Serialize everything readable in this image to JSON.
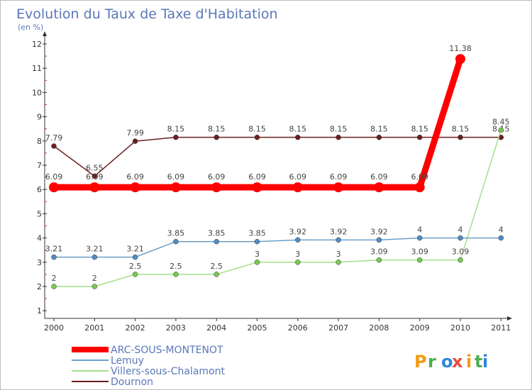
{
  "chart_data": {
    "type": "line",
    "title": "Evolution du Taux de Taxe d'Habitation",
    "subtitle": "(en %)",
    "x": [
      "2000",
      "2001",
      "2002",
      "2003",
      "2004",
      "2005",
      "2006",
      "2007",
      "2008",
      "2009",
      "2010",
      "2011"
    ],
    "ylim": [
      1,
      12
    ],
    "yticks": [
      "1",
      "2",
      "3",
      "4",
      "5",
      "6",
      "7",
      "8",
      "9",
      "10",
      "11",
      "12"
    ],
    "grid": false,
    "legend_position": "bottom-left",
    "series": [
      {
        "name": "Dournon",
        "color": "#6b1f1f",
        "values": [
          7.79,
          6.55,
          7.99,
          8.15,
          8.15,
          8.15,
          8.15,
          8.15,
          8.15,
          8.15,
          8.15,
          8.15
        ],
        "labels": [
          "7.79",
          "6.55",
          "7.99",
          "8.15",
          "8.15",
          "8.15",
          "8.15",
          "8.15",
          "8.15",
          "8.15",
          "8.15",
          "8.15"
        ]
      },
      {
        "name": "Villers-sous-Chalamont",
        "color": "#a3e08a",
        "marker_color": "#7ac94f",
        "values": [
          2,
          2,
          2.5,
          2.5,
          2.5,
          3,
          3,
          3,
          3.09,
          3.09,
          3.09,
          8.45
        ],
        "labels": [
          "2",
          "2",
          "2.5",
          "2.5",
          "2.5",
          "3",
          "3",
          "3",
          "3.09",
          "3.09",
          "3.09",
          "8.45"
        ]
      },
      {
        "name": "Lemuy",
        "color": "#6d9fc9",
        "marker_color": "#4f8dc6",
        "values": [
          3.21,
          3.21,
          3.21,
          3.85,
          3.85,
          3.85,
          3.92,
          3.92,
          3.92,
          4,
          4,
          4
        ],
        "labels": [
          "3.21",
          "3.21",
          "3.21",
          "3.85",
          "3.85",
          "3.85",
          "3.92",
          "3.92",
          "3.92",
          "4",
          "4",
          "4"
        ]
      },
      {
        "name": "ARC-SOUS-MONTENOT",
        "color": "#ff0000",
        "values": [
          6.09,
          6.09,
          6.09,
          6.09,
          6.09,
          6.09,
          6.09,
          6.09,
          6.09,
          6.09,
          11.38,
          null
        ],
        "labels": [
          "6.09",
          "6.09",
          "6.09",
          "6.09",
          "6.09",
          "6.09",
          "6.09",
          "6.09",
          "6.09",
          "6.09",
          "11.38",
          ""
        ]
      }
    ],
    "legend": [
      "ARC-SOUS-MONTENOT",
      "Lemuy",
      "Villers-sous-Chalamont",
      "Dournon"
    ]
  },
  "brand": {
    "letters": [
      "P",
      "r",
      "o",
      "x",
      "i",
      "t",
      "i"
    ],
    "colors": [
      "#f39c12",
      "#4caf50",
      "#2e86de",
      "#e74c3c",
      "#f39c12",
      "#4caf50",
      "#2e86de"
    ]
  }
}
